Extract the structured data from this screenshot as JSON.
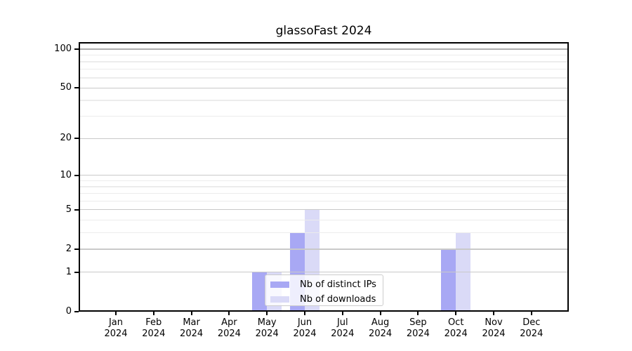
{
  "chart_data": {
    "type": "bar",
    "title": "glassoFast 2024",
    "categories": [
      "Jan 2024",
      "Feb 2024",
      "Mar 2024",
      "Apr 2024",
      "May 2024",
      "Jun 2024",
      "Jul 2024",
      "Aug 2024",
      "Sep 2024",
      "Oct 2024",
      "Nov 2024",
      "Dec 2024"
    ],
    "x_tick_month_names": [
      "Jan",
      "Feb",
      "Mar",
      "Apr",
      "May",
      "Jun",
      "Jul",
      "Aug",
      "Sep",
      "Oct",
      "Nov",
      "Dec"
    ],
    "x_tick_year": "2024",
    "series": [
      {
        "name": "Nb of distinct IPs",
        "color": "#a8a8f4",
        "values": [
          0,
          0,
          0,
          0,
          1,
          3,
          0,
          0,
          0,
          2,
          0,
          0
        ]
      },
      {
        "name": "Nb of downloads",
        "color": "#dadaf7",
        "values": [
          0,
          0,
          0,
          0,
          1,
          5,
          0,
          0,
          0,
          3,
          0,
          0
        ]
      }
    ],
    "y_scale": "log1p",
    "ylim": [
      0,
      113
    ],
    "y_major_ticks": [
      0,
      1,
      2,
      5,
      10,
      20,
      50,
      100
    ],
    "y_minor_ticks": [
      3,
      4,
      6,
      7,
      8,
      9,
      30,
      40,
      60,
      70,
      80,
      90
    ],
    "grid": "both",
    "legend_position": "inside-lower-center"
  },
  "colors": {
    "background": "#ffffff",
    "spine": "#000000",
    "grid_major": "#c9c9c9",
    "grid_minor": "#ececec",
    "grid_top_major": "#aeaeae",
    "legend_border": "#cccccc",
    "text": "#000000"
  }
}
